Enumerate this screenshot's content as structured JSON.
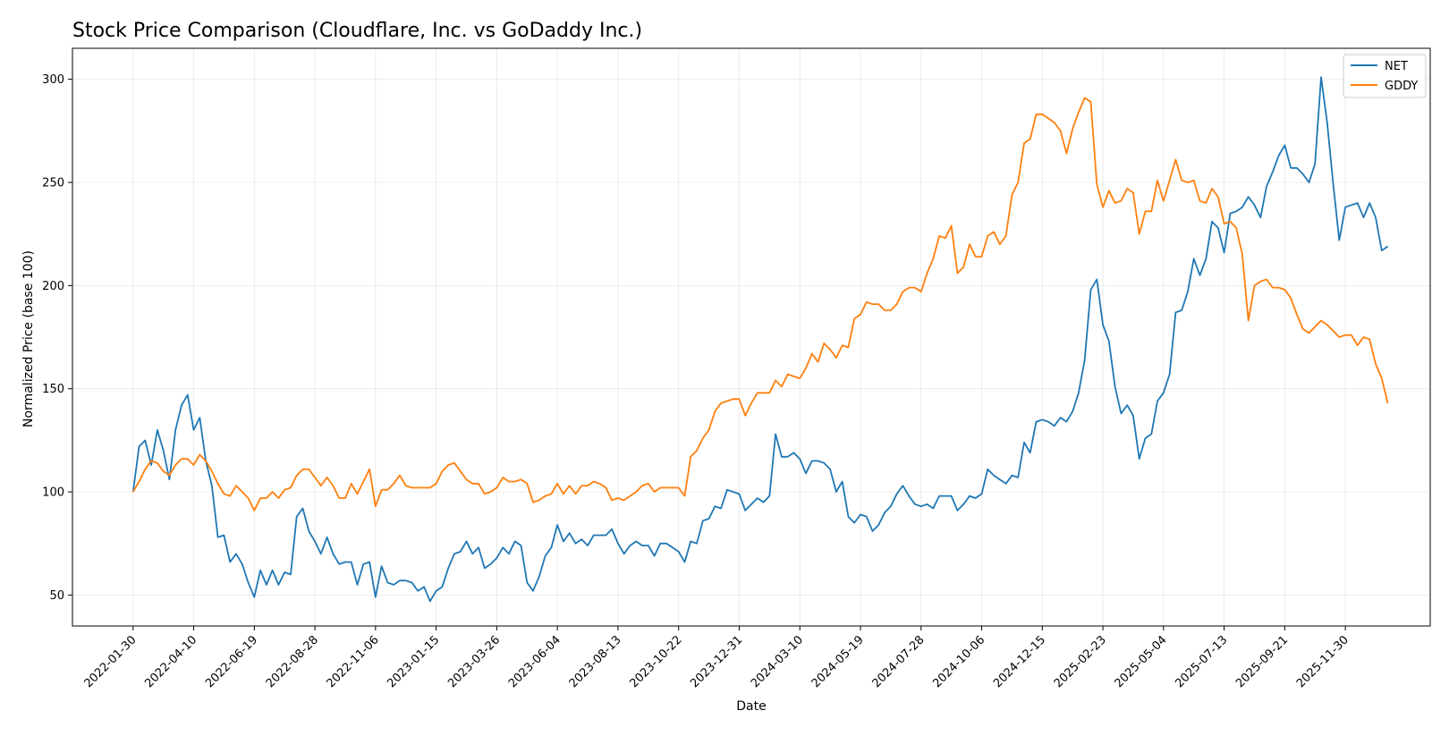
{
  "chart_data": {
    "type": "line",
    "title": "Stock Price Comparison (Cloudflare, Inc. vs GoDaddy Inc.)",
    "xlabel": "Date",
    "ylabel": "Normalized Price (base 100)",
    "x_start": "2022-01-30",
    "x_step_days": 7,
    "x_tick_labels": [
      "2022-01-30",
      "2022-04-10",
      "2022-06-19",
      "2022-08-28",
      "2022-11-06",
      "2023-01-15",
      "2023-03-26",
      "2023-06-04",
      "2023-08-13",
      "2023-10-22",
      "2023-12-31",
      "2024-03-10",
      "2024-05-19",
      "2024-07-28",
      "2024-10-06",
      "2024-12-15",
      "2025-02-23",
      "2025-05-04",
      "2025-07-13",
      "2025-09-21",
      "2025-11-30"
    ],
    "x_tick_weeks": [
      0,
      10,
      20,
      30,
      40,
      50,
      60,
      70,
      80,
      90,
      100,
      110,
      120,
      130,
      140,
      150,
      160,
      170,
      180,
      190,
      200
    ],
    "xlim_weeks": [
      -10,
      214
    ],
    "y_ticks": [
      50,
      100,
      150,
      200,
      250,
      300
    ],
    "ylim": [
      35,
      315
    ],
    "grid": true,
    "legend_position": "top-right",
    "series": [
      {
        "name": "NET",
        "color": "#1f77b4",
        "values": [
          100,
          122,
          125,
          113,
          130,
          120,
          106,
          130,
          142,
          147,
          130,
          136,
          115,
          103,
          78,
          79,
          66,
          70,
          65,
          56,
          49,
          62,
          55,
          62,
          55,
          61,
          60,
          88,
          92,
          81,
          76,
          70,
          78,
          70,
          65,
          66,
          66,
          55,
          65,
          66,
          49,
          64,
          56,
          55,
          57,
          57,
          56,
          52,
          54,
          47,
          52,
          54,
          63,
          70,
          71,
          76,
          70,
          73,
          63,
          65,
          68,
          73,
          70,
          76,
          74,
          56,
          52,
          59,
          69,
          73,
          84,
          76,
          80,
          75,
          77,
          74,
          79,
          79,
          79,
          82,
          75,
          70,
          74,
          76,
          74,
          74,
          69,
          75,
          75,
          73,
          71,
          66,
          76,
          75,
          86,
          87,
          93,
          92,
          101,
          100,
          99,
          91,
          94,
          97,
          95,
          98,
          128,
          117,
          117,
          119,
          116,
          109,
          115,
          115,
          114,
          111,
          100,
          105,
          88,
          85,
          89,
          88,
          81,
          84,
          90,
          93,
          99,
          103,
          98,
          94,
          93,
          94,
          92,
          98,
          98,
          98,
          91,
          94,
          98,
          97,
          99,
          111,
          108,
          106,
          104,
          108,
          107,
          124,
          119,
          134,
          135,
          134,
          132,
          136,
          134,
          139,
          148,
          164,
          198,
          203,
          181,
          173,
          151,
          138,
          142,
          137,
          116,
          126,
          128,
          144,
          148,
          157,
          187,
          188,
          197,
          213,
          205,
          213,
          231,
          228,
          216,
          235,
          236,
          238,
          243,
          239,
          233,
          248,
          255,
          263,
          268,
          257,
          257,
          254,
          250,
          259,
          301,
          279,
          249,
          222,
          238,
          239,
          240,
          233,
          240,
          233,
          217,
          219
        ]
      },
      {
        "name": "GDDY",
        "color": "#ff7f0e",
        "values": [
          100,
          105,
          111,
          115,
          114,
          110,
          108,
          113,
          116,
          116,
          113,
          118,
          115,
          110,
          104,
          99,
          98,
          103,
          100,
          97,
          91,
          97,
          97,
          100,
          97,
          101,
          102,
          108,
          111,
          111,
          107,
          103,
          107,
          103,
          97,
          97,
          104,
          99,
          105,
          111,
          93,
          101,
          101,
          104,
          108,
          103,
          102,
          102,
          102,
          102,
          104,
          110,
          113,
          114,
          110,
          106,
          104,
          104,
          99,
          100,
          102,
          107,
          105,
          105,
          106,
          104,
          95,
          96,
          98,
          99,
          104,
          99,
          103,
          99,
          103,
          103,
          105,
          104,
          102,
          96,
          97,
          96,
          98,
          100,
          103,
          104,
          100,
          102,
          102,
          102,
          102,
          98,
          117,
          120,
          126,
          130,
          139,
          143,
          144,
          145,
          145,
          137,
          143,
          148,
          148,
          148,
          154,
          151,
          157,
          156,
          155,
          160,
          167,
          163,
          172,
          169,
          165,
          171,
          170,
          184,
          186,
          192,
          191,
          191,
          188,
          188,
          191,
          197,
          199,
          199,
          197,
          206,
          213,
          224,
          223,
          229,
          206,
          209,
          220,
          214,
          214,
          224,
          226,
          220,
          224,
          244,
          250,
          269,
          271,
          283,
          283,
          281,
          279,
          275,
          264,
          276,
          284,
          291,
          289,
          249,
          238,
          246,
          240,
          241,
          247,
          245,
          225,
          236,
          236,
          251,
          241,
          251,
          261,
          251,
          250,
          251,
          241,
          240,
          247,
          243,
          230,
          231,
          228,
          215,
          183,
          200,
          202,
          203,
          199,
          199,
          198,
          194,
          186,
          179,
          177,
          180,
          183,
          181,
          178,
          175,
          176,
          176,
          171,
          175,
          174,
          162,
          155,
          143
        ]
      }
    ]
  }
}
